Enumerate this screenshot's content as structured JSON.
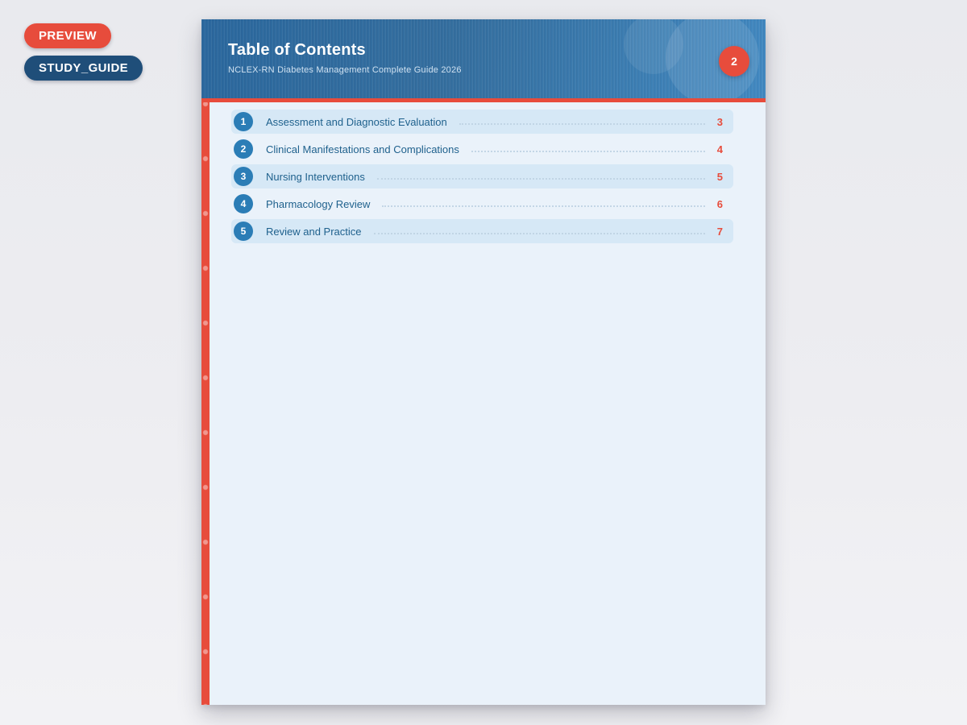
{
  "badges": [
    {
      "label": "PREVIEW"
    },
    {
      "label": "STUDY_GUIDE"
    }
  ],
  "page": {
    "header": {
      "title": "Table of Contents",
      "subtitle": "NCLEX-RN Diabetes Management Complete Guide 2026",
      "page_badge": "2"
    },
    "toc": [
      {
        "num": "1",
        "title": "Assessment and Diagnostic Evaluation",
        "page": "3"
      },
      {
        "num": "2",
        "title": "Clinical Manifestations and Complications",
        "page": "4"
      },
      {
        "num": "3",
        "title": "Nursing Interventions",
        "page": "5"
      },
      {
        "num": "4",
        "title": "Pharmacology Review",
        "page": "6"
      },
      {
        "num": "5",
        "title": "Review and Practice",
        "page": "7"
      }
    ]
  },
  "colors": {
    "accent_red": "#e74c3c",
    "badge_navy": "#1f4e79",
    "header_blue_dark": "#2b689e",
    "header_blue_light": "#4289c1",
    "page_bg": "#eaf2fa",
    "row_bg": "#d6e8f6",
    "circle_blue": "#2b7db6",
    "toc_text_blue": "#1f618d",
    "leader_dots": "#bfd4e4"
  }
}
